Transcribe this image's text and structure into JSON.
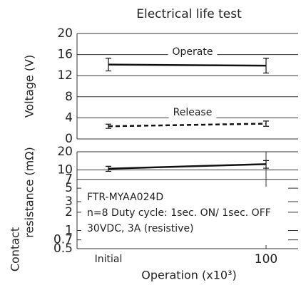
{
  "chart_data": [
    {
      "type": "line",
      "title": "Electrical life test",
      "ylabel": "Voltage (V)",
      "ylim": [
        0,
        20
      ],
      "yticks": [
        0,
        4,
        8,
        12,
        16,
        20
      ],
      "grid": true,
      "series": [
        {
          "name": "Operate",
          "color": "#111",
          "linestyle": "solid",
          "values": [
            14.1,
            13.9
          ],
          "errors": [
            1.2,
            1.4
          ]
        },
        {
          "name": "Release",
          "color": "#111",
          "linestyle": "dashed",
          "values": [
            2.4,
            2.9
          ],
          "errors": [
            0.4,
            0.5
          ]
        }
      ]
    },
    {
      "type": "line",
      "ylabel": [
        "Contact",
        "resistance (mΩ)"
      ],
      "log_scale": true,
      "ylim": [
        0.5,
        20
      ],
      "yticks": [
        0.5,
        0.7,
        1,
        2,
        3,
        5,
        7,
        10,
        20
      ],
      "grid": true,
      "categories": [
        "Initial",
        "100"
      ],
      "xlabel": "Operation (x10³)",
      "series": [
        {
          "color": "#111",
          "linestyle": "solid",
          "values": [
            10.5,
            12.5
          ],
          "errors": [
            1,
            1.8
          ]
        }
      ],
      "notes": [
        "FTR-MYAA024D",
        "n=8 Duty cycle: 1sec. ON/ 1sec. OFF",
        "30VDC, 3A (resistive)"
      ]
    }
  ]
}
